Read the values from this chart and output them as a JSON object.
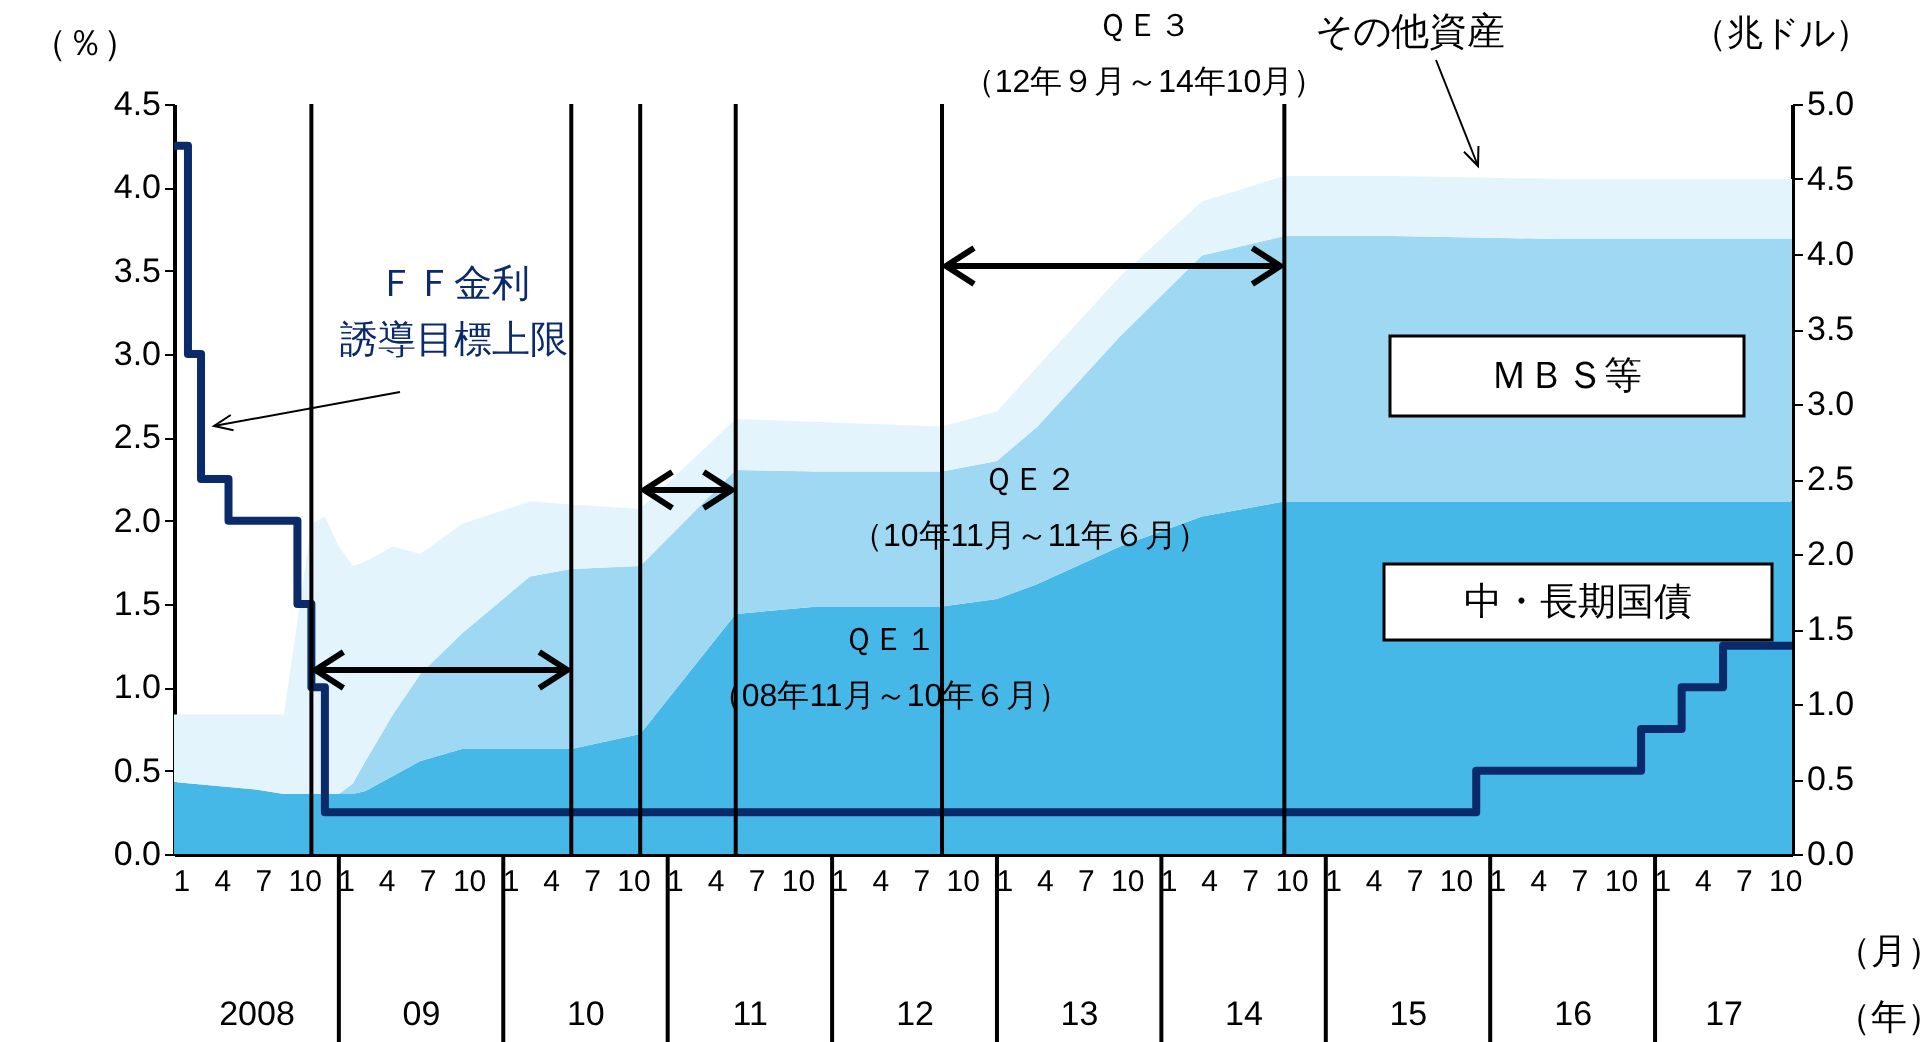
{
  "chart_data": {
    "type": "area",
    "stacked": true,
    "grid": false,
    "legend": false,
    "ylabel": "（％）",
    "y2label": "（兆ドル）",
    "xlabel": "（月）",
    "x2label": "（年）",
    "xlim": [
      "2008-01",
      "2017-11"
    ],
    "x2lim": [
      "2008-01",
      "2017-11"
    ],
    "xticks": [
      {
        "value": "2008-01-16",
        "label": "1"
      },
      {
        "value": "2008-04-16",
        "label": "4"
      },
      {
        "value": "2008-07-16",
        "label": "7"
      },
      {
        "value": "2008-10-16",
        "label": "10"
      },
      {
        "value": "2009-01-16",
        "label": "1"
      },
      {
        "value": "2009-04-16",
        "label": "4"
      },
      {
        "value": "2009-07-16",
        "label": "7"
      },
      {
        "value": "2009-10-16",
        "label": "10"
      },
      {
        "value": "2010-01-16",
        "label": "1"
      },
      {
        "value": "2010-04-16",
        "label": "4"
      },
      {
        "value": "2010-07-16",
        "label": "7"
      },
      {
        "value": "2010-10-16",
        "label": "10"
      },
      {
        "value": "2011-01-16",
        "label": "1"
      },
      {
        "value": "2011-04-16",
        "label": "4"
      },
      {
        "value": "2011-07-16",
        "label": "7"
      },
      {
        "value": "2011-10-16",
        "label": "10"
      },
      {
        "value": "2012-01-16",
        "label": "1"
      },
      {
        "value": "2012-04-16",
        "label": "4"
      },
      {
        "value": "2012-07-16",
        "label": "7"
      },
      {
        "value": "2012-10-16",
        "label": "10"
      },
      {
        "value": "2013-01-16",
        "label": "1"
      },
      {
        "value": "2013-04-16",
        "label": "4"
      },
      {
        "value": "2013-07-16",
        "label": "7"
      },
      {
        "value": "2013-10-16",
        "label": "10"
      },
      {
        "value": "2014-01-16",
        "label": "1"
      },
      {
        "value": "2014-04-16",
        "label": "4"
      },
      {
        "value": "2014-07-16",
        "label": "7"
      },
      {
        "value": "2014-10-16",
        "label": "10"
      },
      {
        "value": "2015-01-16",
        "label": "1"
      },
      {
        "value": "2015-04-16",
        "label": "4"
      },
      {
        "value": "2015-07-16",
        "label": "7"
      },
      {
        "value": "2015-10-16",
        "label": "10"
      },
      {
        "value": "2016-01-16",
        "label": "1"
      },
      {
        "value": "2016-04-16",
        "label": "4"
      },
      {
        "value": "2016-07-16",
        "label": "7"
      },
      {
        "value": "2016-10-16",
        "label": "10"
      },
      {
        "value": "2017-01-16",
        "label": "1"
      },
      {
        "value": "2017-04-16",
        "label": "4"
      },
      {
        "value": "2017-07-16",
        "label": "7"
      },
      {
        "value": "2017-10-16",
        "label": "10"
      }
    ],
    "x2ticks": [
      {
        "value": "2008-07",
        "label": "2008"
      },
      {
        "value": "2009-07",
        "label": "09"
      },
      {
        "value": "2010-07",
        "label": "10"
      },
      {
        "value": "2011-07",
        "label": "11"
      },
      {
        "value": "2012-07",
        "label": "12"
      },
      {
        "value": "2013-07",
        "label": "13"
      },
      {
        "value": "2014-07",
        "label": "14"
      },
      {
        "value": "2015-07",
        "label": "15"
      },
      {
        "value": "2016-07",
        "label": "16"
      },
      {
        "value": "2017-06",
        "label": "17"
      }
    ],
    "ylim": [
      0,
      4.5
    ],
    "yticks": [
      {
        "value": 0,
        "label": "0.0"
      },
      0.5,
      {
        "value": 1,
        "label": "1.0"
      },
      1.5,
      {
        "value": 2,
        "label": "2.0"
      },
      2.5,
      {
        "value": 3,
        "label": "3.0"
      },
      3.5,
      {
        "value": 4,
        "label": "4.0"
      },
      4.5
    ],
    "y2lim": [
      0,
      5
    ],
    "y2ticks": [
      {
        "value": 0,
        "label": "0.0"
      },
      0.5,
      {
        "value": 1,
        "label": "1.0"
      },
      1.5,
      {
        "value": 2,
        "label": "2.0"
      },
      2.5,
      {
        "value": 3,
        "label": "3.0"
      },
      3.5,
      {
        "value": 4,
        "label": "4.0"
      },
      4.5,
      {
        "value": 5,
        "label": "5.0"
      }
    ],
    "x": [
      "2008-01",
      "2008-07",
      "2008-09",
      "2008-11",
      "2008-12",
      "2009-01",
      "2009-02",
      "2009-03",
      "2009-05",
      "2009-07",
      "2009-10",
      "2010-03",
      "2010-06",
      "2010-11",
      "2011-06",
      "2011-12",
      "2012-09",
      "2013-01",
      "2013-04",
      "2013-10",
      "2014-04",
      "2014-10",
      "2015-06",
      "2016-06",
      "2017-11"
    ],
    "series": [
      {
        "name": "中・長期国債",
        "type": "area",
        "axis": "y2",
        "color": "#45b8e8",
        "values": [
          0.48,
          0.43,
          0.4,
          0.4,
          0.4,
          0.4,
          0.4,
          0.42,
          0.52,
          0.62,
          0.7,
          0.7,
          0.7,
          0.8,
          1.6,
          1.65,
          1.65,
          1.7,
          1.8,
          2.05,
          2.25,
          2.35,
          2.35,
          2.35,
          2.35
        ]
      },
      {
        "name": "ＭＢＳ等",
        "type": "area",
        "axis": "y2",
        "color": "#9fd8f2",
        "values": [
          0,
          0,
          0,
          0,
          0,
          0,
          0.07,
          0.2,
          0.41,
          0.58,
          0.77,
          1.15,
          1.2,
          1.12,
          0.96,
          0.9,
          0.9,
          0.92,
          1.05,
          1.4,
          1.74,
          1.77,
          1.77,
          1.75,
          1.75
        ]
      },
      {
        "name": "その他資産",
        "type": "area",
        "axis": "y2",
        "color": "#e4f4fc",
        "values": [
          0.45,
          0.5,
          0.53,
          1.8,
          1.85,
          1.65,
          1.45,
          1.33,
          1.12,
          0.8,
          0.73,
          0.5,
          0.43,
          0.38,
          0.34,
          0.33,
          0.3,
          0.33,
          0.4,
          0.4,
          0.36,
          0.4,
          0.4,
          0.4,
          0.4
        ]
      },
      {
        "name": "ＦＦ金利誘導目標上限",
        "type": "step",
        "axis": "y",
        "color": "#0b2a6a",
        "x": [
          "2008-01",
          "2008-02",
          "2008-03",
          "2008-05",
          "2008-10",
          "2008-11",
          "2008-12",
          "2015-12",
          "2016-12",
          "2017-03",
          "2017-06",
          "2017-11"
        ],
        "values": [
          4.25,
          3.0,
          2.25,
          2.0,
          1.5,
          1.0,
          0.25,
          0.5,
          0.75,
          1.0,
          1.25,
          1.25
        ]
      }
    ],
    "ref_lines": [
      {
        "axis": "x",
        "value": "2008-11"
      },
      {
        "axis": "x",
        "value": "2010-06"
      },
      {
        "axis": "x",
        "value": "2010-11"
      },
      {
        "axis": "x",
        "value": "2011-06"
      },
      {
        "axis": "x",
        "value": "2012-09"
      },
      {
        "axis": "x",
        "value": "2014-10"
      }
    ],
    "annotations": [
      "ＱＥ１（08年11月～10年６月）",
      "ＱＥ２（10年11月～11年６月）",
      "ＱＥ３（12年９月～14年10月）"
    ]
  }
}
